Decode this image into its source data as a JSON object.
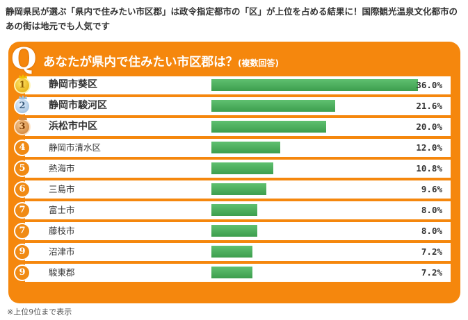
{
  "headline": "静岡県民が選ぶ「県内で住みたい市区郡」は政令指定都市の「区」が上位を占める結果に！国際観光温泉文化都市のあの街は地元でも人気です",
  "question": {
    "badge": "Q",
    "title": "あなたが県内で住みたい市区郡は？",
    "note": "(複数回答)"
  },
  "chart_data": {
    "type": "bar",
    "orientation": "horizontal",
    "title": "あなたが県内で住みたい市区郡は？(複数回答)",
    "value_unit": "%",
    "xlim": [
      0,
      40
    ],
    "rows": [
      {
        "rank": "1",
        "label": "静岡市葵区",
        "value": 36.0,
        "value_text": "36.0%",
        "medal": "gold"
      },
      {
        "rank": "2",
        "label": "静岡市駿河区",
        "value": 21.6,
        "value_text": "21.6%",
        "medal": "silver"
      },
      {
        "rank": "3",
        "label": "浜松市中区",
        "value": 20.0,
        "value_text": "20.0%",
        "medal": "bronze"
      },
      {
        "rank": "4",
        "label": "静岡市清水区",
        "value": 12.0,
        "value_text": "12.0%",
        "medal": "plain"
      },
      {
        "rank": "5",
        "label": "熱海市",
        "value": 10.8,
        "value_text": "10.8%",
        "medal": "plain"
      },
      {
        "rank": "6",
        "label": "三島市",
        "value": 9.6,
        "value_text": "9.6%",
        "medal": "plain"
      },
      {
        "rank": "7",
        "label": "富士市",
        "value": 8.0,
        "value_text": "8.0%",
        "medal": "plain"
      },
      {
        "rank": "7",
        "label": "藤枝市",
        "value": 8.0,
        "value_text": "8.0%",
        "medal": "plain"
      },
      {
        "rank": "9",
        "label": "沼津市",
        "value": 7.2,
        "value_text": "7.2%",
        "medal": "plain"
      },
      {
        "rank": "9",
        "label": "駿東郡",
        "value": 7.2,
        "value_text": "7.2%",
        "medal": "plain"
      }
    ]
  },
  "footnote": "※上位9位まで表示",
  "colors": {
    "panel": "#f5870d",
    "bar": "#4caf5c",
    "row_bg": "#ffffff"
  }
}
